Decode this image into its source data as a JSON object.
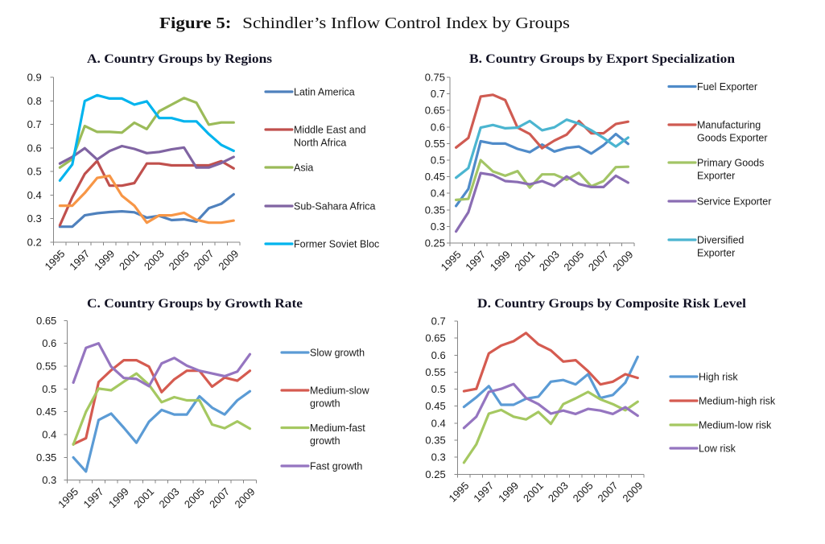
{
  "figure": {
    "label": "Figure 5:",
    "title": "Schindler’s Inflow Control Index by Groups"
  },
  "chart_data": [
    {
      "id": "A",
      "type": "line",
      "title": "A. Country Groups by Regions",
      "xlabel": "",
      "ylabel": "",
      "grid": false,
      "legend": "right",
      "x": [
        "1995",
        "1996",
        "1997",
        "1998",
        "1999",
        "2000",
        "2001",
        "2002",
        "2003",
        "2004",
        "2005",
        "2006",
        "2007",
        "2008",
        "2009"
      ],
      "xtick_labels": [
        "1995",
        "1997",
        "1999",
        "2001",
        "2003",
        "2005",
        "2007",
        "2009"
      ],
      "ylim": [
        0.2,
        0.9
      ],
      "yticks": [
        "0.2",
        "0.3",
        "0.4",
        "0.5",
        "0.6",
        "0.7",
        "0.8",
        "0.9"
      ],
      "series": [
        {
          "name": "Latin America",
          "legend_lines": [
            "Latin America"
          ],
          "color": "#4F81BD",
          "values": [
            0.266,
            0.266,
            0.314,
            0.323,
            0.328,
            0.331,
            0.327,
            0.304,
            0.312,
            0.294,
            0.297,
            0.287,
            0.344,
            0.363,
            0.403
          ]
        },
        {
          "name": "Middle East and North Africa",
          "legend_lines": [
            "Middle East and",
            "North Africa"
          ],
          "color": "#C0504D",
          "values": [
            0.272,
            0.391,
            0.49,
            0.545,
            0.44,
            0.44,
            0.451,
            0.534,
            0.534,
            0.526,
            0.526,
            0.526,
            0.526,
            0.544,
            0.513
          ]
        },
        {
          "name": "Asia",
          "legend_lines": [
            "Asia"
          ],
          "color": "#9BBB59",
          "values": [
            0.517,
            0.553,
            0.693,
            0.668,
            0.668,
            0.665,
            0.707,
            0.68,
            0.756,
            0.784,
            0.812,
            0.792,
            0.699,
            0.708,
            0.708
          ]
        },
        {
          "name": "Sub-Sahara Africa",
          "legend_lines": [
            "Sub-Sahara Africa"
          ],
          "color": "#8064A2",
          "values": [
            0.534,
            0.562,
            0.599,
            0.551,
            0.587,
            0.608,
            0.596,
            0.578,
            0.583,
            0.594,
            0.602,
            0.517,
            0.517,
            0.536,
            0.562
          ]
        },
        {
          "name": "Former Soviet Bloc",
          "legend_lines": [
            "Former Soviet Bloc"
          ],
          "color": "#00B4EE",
          "values": [
            0.462,
            0.53,
            0.799,
            0.824,
            0.81,
            0.81,
            0.784,
            0.798,
            0.727,
            0.727,
            0.713,
            0.713,
            0.659,
            0.613,
            0.588
          ]
        },
        {
          "name": "",
          "legend_lines": [],
          "color": "#F79646",
          "values": [
            0.355,
            0.355,
            0.409,
            0.473,
            0.482,
            0.397,
            0.355,
            0.283,
            0.314,
            0.314,
            0.325,
            0.295,
            0.283,
            0.283,
            0.292
          ]
        }
      ]
    },
    {
      "id": "B",
      "type": "line",
      "title": "B. Country Groups by Export Specialization",
      "xlabel": "",
      "ylabel": "",
      "grid": false,
      "legend": "right",
      "x": [
        "1995",
        "1996",
        "1997",
        "1998",
        "1999",
        "2000",
        "2001",
        "2002",
        "2003",
        "2004",
        "2005",
        "2006",
        "2007",
        "2008",
        "2009"
      ],
      "xtick_labels": [
        "1995",
        "1997",
        "1999",
        "2001",
        "2003",
        "2005",
        "2007",
        "2009"
      ],
      "ylim": [
        0.25,
        0.75
      ],
      "yticks": [
        "0.25",
        "0.3",
        "0.35",
        "0.4",
        "0.45",
        "0.5",
        "0.55",
        "0.6",
        "0.65",
        "0.7",
        "0.75"
      ],
      "series": [
        {
          "name": "Fuel Exporter",
          "legend_lines": [
            "Fuel Exporter"
          ],
          "color": "#4F8BC9",
          "values": [
            0.362,
            0.413,
            0.557,
            0.55,
            0.55,
            0.534,
            0.524,
            0.547,
            0.526,
            0.537,
            0.541,
            0.52,
            0.545,
            0.579,
            0.549
          ]
        },
        {
          "name": "Manufacturing Goods Exporter",
          "legend_lines": [
            "Manufacturing",
            "Goods Exporter"
          ],
          "color": "#CF5B52",
          "values": [
            0.538,
            0.567,
            0.692,
            0.697,
            0.681,
            0.598,
            0.579,
            0.536,
            0.559,
            0.577,
            0.618,
            0.581,
            0.581,
            0.609,
            0.616
          ]
        },
        {
          "name": "Primary Goods Exporter",
          "legend_lines": [
            "Primary Goods",
            "Exporter"
          ],
          "color": "#A3C566",
          "values": [
            0.38,
            0.383,
            0.5,
            0.466,
            0.453,
            0.467,
            0.417,
            0.457,
            0.457,
            0.441,
            0.462,
            0.421,
            0.437,
            0.479,
            0.48
          ]
        },
        {
          "name": "Service Exporter",
          "legend_lines": [
            "Service Exporter"
          ],
          "color": "#8A6DB3",
          "values": [
            0.285,
            0.343,
            0.461,
            0.455,
            0.437,
            0.434,
            0.427,
            0.437,
            0.422,
            0.451,
            0.428,
            0.419,
            0.419,
            0.453,
            0.432
          ]
        },
        {
          "name": "Diversified Exporter",
          "legend_lines": [
            "Diversified",
            "Exporter"
          ],
          "color": "#4BB5D0",
          "values": [
            0.447,
            0.476,
            0.598,
            0.606,
            0.596,
            0.598,
            0.618,
            0.59,
            0.599,
            0.622,
            0.61,
            0.59,
            0.567,
            0.541,
            0.568
          ]
        }
      ]
    },
    {
      "id": "C",
      "type": "line",
      "title": "C. Country Groups by Growth Rate",
      "xlabel": "",
      "ylabel": "",
      "grid": false,
      "legend": "right",
      "x": [
        "1995",
        "1996",
        "1997",
        "1998",
        "1999",
        "2000",
        "2001",
        "2002",
        "2003",
        "2004",
        "2005",
        "2006",
        "2007",
        "2008",
        "2009"
      ],
      "xtick_labels": [
        "1995",
        "1997",
        "1999",
        "2001",
        "2003",
        "2005",
        "2007",
        "2009"
      ],
      "ylim": [
        0.3,
        0.65
      ],
      "yticks": [
        "0.3",
        "0.35",
        "0.4",
        "0.45",
        "0.5",
        "0.55",
        "0.6",
        "0.65"
      ],
      "series": [
        {
          "name": "Slow growth",
          "legend_lines": [
            "Slow growth"
          ],
          "color": "#5B9BD5",
          "values": [
            0.35,
            0.319,
            0.432,
            0.446,
            0.415,
            0.382,
            0.428,
            0.454,
            0.444,
            0.444,
            0.484,
            0.459,
            0.444,
            0.475,
            0.495
          ]
        },
        {
          "name": "Medium-slow growth",
          "legend_lines": [
            "Medium-slow",
            "growth"
          ],
          "color": "#D55B50",
          "values": [
            0.379,
            0.392,
            0.515,
            0.541,
            0.563,
            0.563,
            0.549,
            0.493,
            0.521,
            0.54,
            0.54,
            0.505,
            0.525,
            0.518,
            0.54
          ]
        },
        {
          "name": "Medium-fast growth",
          "legend_lines": [
            "Medium-fast",
            "growth"
          ],
          "color": "#A5C861",
          "values": [
            0.378,
            0.45,
            0.501,
            0.497,
            0.516,
            0.534,
            0.509,
            0.471,
            0.482,
            0.475,
            0.475,
            0.422,
            0.414,
            0.429,
            0.413
          ]
        },
        {
          "name": "Fast growth",
          "legend_lines": [
            "Fast growth"
          ],
          "color": "#9575C0",
          "values": [
            0.514,
            0.59,
            0.6,
            0.549,
            0.524,
            0.522,
            0.506,
            0.556,
            0.568,
            0.551,
            0.54,
            0.534,
            0.528,
            0.538,
            0.576
          ]
        }
      ]
    },
    {
      "id": "D",
      "type": "line",
      "title": "D. Country Groups by Composite Risk Level",
      "xlabel": "",
      "ylabel": "",
      "grid": false,
      "legend": "right",
      "x": [
        "1995",
        "1996",
        "1997",
        "1998",
        "1999",
        "2000",
        "2001",
        "2002",
        "2003",
        "2004",
        "2005",
        "2006",
        "2007",
        "2008",
        "2009"
      ],
      "xtick_labels": [
        "1995",
        "1997",
        "1999",
        "2001",
        "2003",
        "2005",
        "2007",
        "2009"
      ],
      "ylim": [
        0.25,
        0.7
      ],
      "yticks": [
        "0.25",
        "0.3",
        "0.35",
        "0.4",
        "0.45",
        "0.5",
        "0.55",
        "0.6",
        "0.65",
        "0.7"
      ],
      "series": [
        {
          "name": "High risk",
          "legend_lines": [
            "High risk"
          ],
          "color": "#5B9BD5",
          "values": [
            0.448,
            0.476,
            0.509,
            0.454,
            0.454,
            0.472,
            0.478,
            0.522,
            0.527,
            0.514,
            0.544,
            0.474,
            0.483,
            0.519,
            0.595
          ]
        },
        {
          "name": "Medium-high risk",
          "legend_lines": [
            "Medium-high risk"
          ],
          "color": "#D55B50",
          "values": [
            0.494,
            0.501,
            0.605,
            0.628,
            0.641,
            0.665,
            0.632,
            0.614,
            0.581,
            0.585,
            0.553,
            0.514,
            0.522,
            0.544,
            0.533
          ]
        },
        {
          "name": "Medium-low risk",
          "legend_lines": [
            "Medium-low risk"
          ],
          "color": "#A5C861",
          "values": [
            0.284,
            0.338,
            0.428,
            0.439,
            0.419,
            0.411,
            0.433,
            0.398,
            0.456,
            0.473,
            0.492,
            0.47,
            0.456,
            0.438,
            0.463
          ]
        },
        {
          "name": "Low risk",
          "legend_lines": [
            "Low risk"
          ],
          "color": "#9575C0",
          "values": [
            0.386,
            0.419,
            0.492,
            0.501,
            0.515,
            0.474,
            0.456,
            0.428,
            0.437,
            0.427,
            0.442,
            0.437,
            0.427,
            0.447,
            0.422
          ]
        }
      ]
    }
  ]
}
